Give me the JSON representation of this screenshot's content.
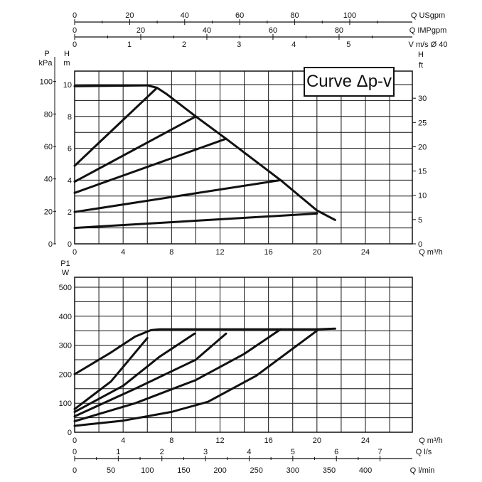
{
  "chart_data": [
    {
      "type": "line",
      "legend_label": "Curve Δp-v",
      "legend_placement": "top-right",
      "grid": true,
      "x_axis": {
        "ticks": [
          "0",
          "4",
          "8",
          "12",
          "16",
          "20",
          "24"
        ],
        "label": "Q m³/h",
        "range": [
          0,
          26
        ]
      },
      "y_left_p": {
        "label_top": "P",
        "label_unit": "kPa",
        "ticks": [
          "0",
          "20",
          "40",
          "60",
          "80",
          "100"
        ],
        "range": [
          0,
          110
        ]
      },
      "y_left_h": {
        "label_top": "H",
        "label_unit": "m",
        "ticks": [
          "0",
          "2",
          "4",
          "6",
          "8",
          "10"
        ],
        "range": [
          0,
          11
        ]
      },
      "y_right_h": {
        "label_top": "H",
        "label_unit": "ft",
        "ticks": [
          "0",
          "5",
          "10",
          "15",
          "20",
          "25",
          "30"
        ],
        "range": [
          0,
          36
        ]
      },
      "top_axes": [
        {
          "label": "Q USgpm",
          "ticks": [
            "0",
            "20",
            "40",
            "60",
            "80",
            "100"
          ],
          "max": 114.5
        },
        {
          "label": "Q IMPgpm",
          "ticks": [
            "0",
            "20",
            "40",
            "60",
            "80"
          ],
          "max": 95.3
        },
        {
          "label": "V m/s Ø 40",
          "ticks": [
            "0",
            "1",
            "2",
            "3",
            "4",
            "5"
          ],
          "max": 5.75
        }
      ],
      "series": [
        {
          "values": [
            [
              0,
              9.9
            ],
            [
              6,
              9.95
            ],
            [
              6.8,
              9.8
            ],
            [
              7.6,
              9.4
            ],
            [
              10,
              8.0
            ],
            [
              12.5,
              6.6
            ],
            [
              17,
              4.0
            ],
            [
              20,
              2.1
            ],
            [
              21.5,
              1.5
            ]
          ]
        },
        {
          "values": [
            [
              0,
              4.9
            ],
            [
              6.8,
              9.8
            ]
          ]
        },
        {
          "values": [
            [
              0,
              3.9
            ],
            [
              10,
              8.0
            ]
          ]
        },
        {
          "values": [
            [
              0,
              3.2
            ],
            [
              12.5,
              6.6
            ]
          ]
        },
        {
          "values": [
            [
              0,
              2.0
            ],
            [
              17,
              4.0
            ]
          ]
        },
        {
          "values": [
            [
              0,
              1.0
            ],
            [
              20,
              1.9
            ]
          ]
        }
      ]
    },
    {
      "type": "line",
      "grid": true,
      "x_axis": {
        "ticks": [
          "0",
          "4",
          "8",
          "12",
          "16",
          "20",
          "24"
        ],
        "label": "Q m³/h",
        "range": [
          0,
          26
        ]
      },
      "y_axis": {
        "label_top": "P1",
        "label_unit": "W",
        "ticks": [
          "0",
          "100",
          "200",
          "300",
          "400",
          "500"
        ],
        "range": [
          0,
          550
        ]
      },
      "bottom_axes": [
        {
          "label": "Q l/s",
          "ticks": [
            "0",
            "1",
            "2",
            "3",
            "4",
            "5",
            "6",
            "7"
          ],
          "max": 7.22
        },
        {
          "label": "Q l/min",
          "ticks": [
            "0",
            "50",
            "100",
            "150",
            "200",
            "250",
            "300",
            "350",
            "400"
          ],
          "max": 433.3
        }
      ],
      "series": [
        {
          "values": [
            [
              0,
              200
            ],
            [
              3,
              275
            ],
            [
              5,
              330
            ],
            [
              6.3,
              352
            ],
            [
              7,
              355
            ],
            [
              10,
              355
            ],
            [
              15,
              355
            ],
            [
              20,
              355
            ],
            [
              21.5,
              357
            ]
          ]
        },
        {
          "values": [
            [
              0,
              80
            ],
            [
              3,
              175
            ],
            [
              6,
              325
            ]
          ]
        },
        {
          "values": [
            [
              0,
              70
            ],
            [
              4,
              160
            ],
            [
              7,
              260
            ],
            [
              9.9,
              340
            ]
          ]
        },
        {
          "values": [
            [
              0,
              55
            ],
            [
              5,
              150
            ],
            [
              10,
              250
            ],
            [
              12.5,
              340
            ]
          ]
        },
        {
          "values": [
            [
              0,
              38
            ],
            [
              5,
              100
            ],
            [
              10,
              180
            ],
            [
              14,
              270
            ],
            [
              17,
              355
            ]
          ]
        },
        {
          "values": [
            [
              0,
              22
            ],
            [
              4,
              40
            ],
            [
              8,
              70
            ],
            [
              11,
              105
            ],
            [
              15,
              195
            ],
            [
              20,
              350
            ]
          ]
        }
      ]
    }
  ]
}
